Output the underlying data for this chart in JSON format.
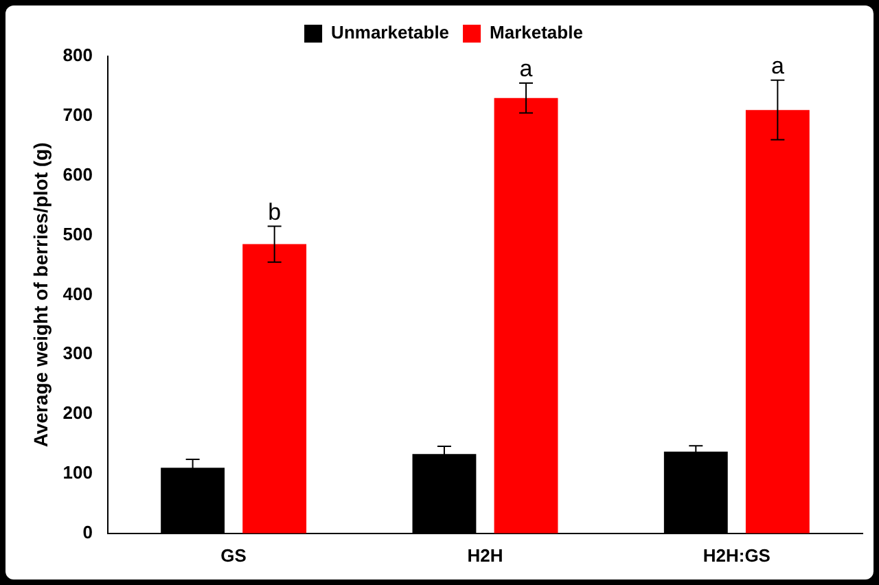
{
  "chart_data": {
    "type": "bar",
    "ylabel": "Average weight of berries/plot (g)",
    "categories": [
      "GS",
      "H2H",
      "H2H:GS"
    ],
    "series": [
      {
        "name": "Unmarketable",
        "color": "#000000",
        "values": [
          110,
          133,
          137
        ],
        "errors": [
          14,
          13,
          10
        ]
      },
      {
        "name": "Marketable",
        "color": "#ff0000",
        "values": [
          485,
          730,
          710
        ],
        "errors": [
          30,
          25,
          50
        ]
      }
    ],
    "ylim": [
      0,
      800
    ],
    "yticks": [
      0,
      100,
      200,
      300,
      400,
      500,
      600,
      700,
      800
    ],
    "grid": false,
    "legend": "top",
    "annotations": [
      "b",
      "a",
      "a"
    ]
  }
}
